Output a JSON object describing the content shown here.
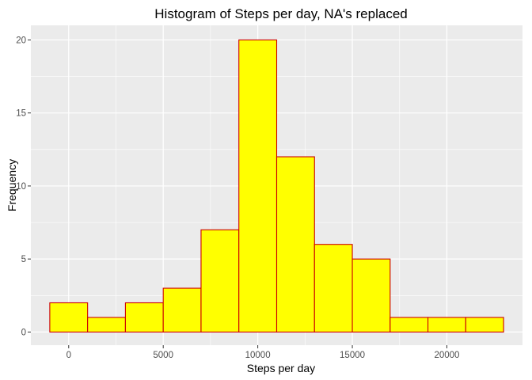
{
  "chart_data": {
    "type": "bar",
    "title": "Histogram of Steps per day, NA's replaced",
    "xlabel": "Steps per day",
    "ylabel": "Frequency",
    "xlim": [
      -2000,
      24000
    ],
    "ylim": [
      -0.9,
      21
    ],
    "x_ticks": [
      0,
      5000,
      10000,
      15000,
      20000
    ],
    "x_tick_labels": [
      "0",
      "5000",
      "10000",
      "15000",
      "20000"
    ],
    "y_ticks": [
      0,
      5,
      10,
      15,
      20
    ],
    "y_tick_labels": [
      "0",
      "5",
      "10",
      "15",
      "20"
    ],
    "bins": [
      {
        "x0": -1000,
        "x1": 1000,
        "count": 2
      },
      {
        "x0": 1000,
        "x1": 3000,
        "count": 1
      },
      {
        "x0": 3000,
        "x1": 5000,
        "count": 2
      },
      {
        "x0": 5000,
        "x1": 7000,
        "count": 3
      },
      {
        "x0": 7000,
        "x1": 9000,
        "count": 7
      },
      {
        "x0": 9000,
        "x1": 11000,
        "count": 20
      },
      {
        "x0": 11000,
        "x1": 13000,
        "count": 12
      },
      {
        "x0": 13000,
        "x1": 15000,
        "count": 6
      },
      {
        "x0": 15000,
        "x1": 17000,
        "count": 5
      },
      {
        "x0": 17000,
        "x1": 19000,
        "count": 1
      },
      {
        "x0": 19000,
        "x1": 21000,
        "count": 1
      },
      {
        "x0": 21000,
        "x1": 23000,
        "count": 1
      }
    ],
    "grid": true,
    "colors": {
      "panel_background": "#ebebeb",
      "grid_major": "#ffffff",
      "bar_fill": "#ffff00",
      "bar_outline": "#cd0000"
    }
  }
}
